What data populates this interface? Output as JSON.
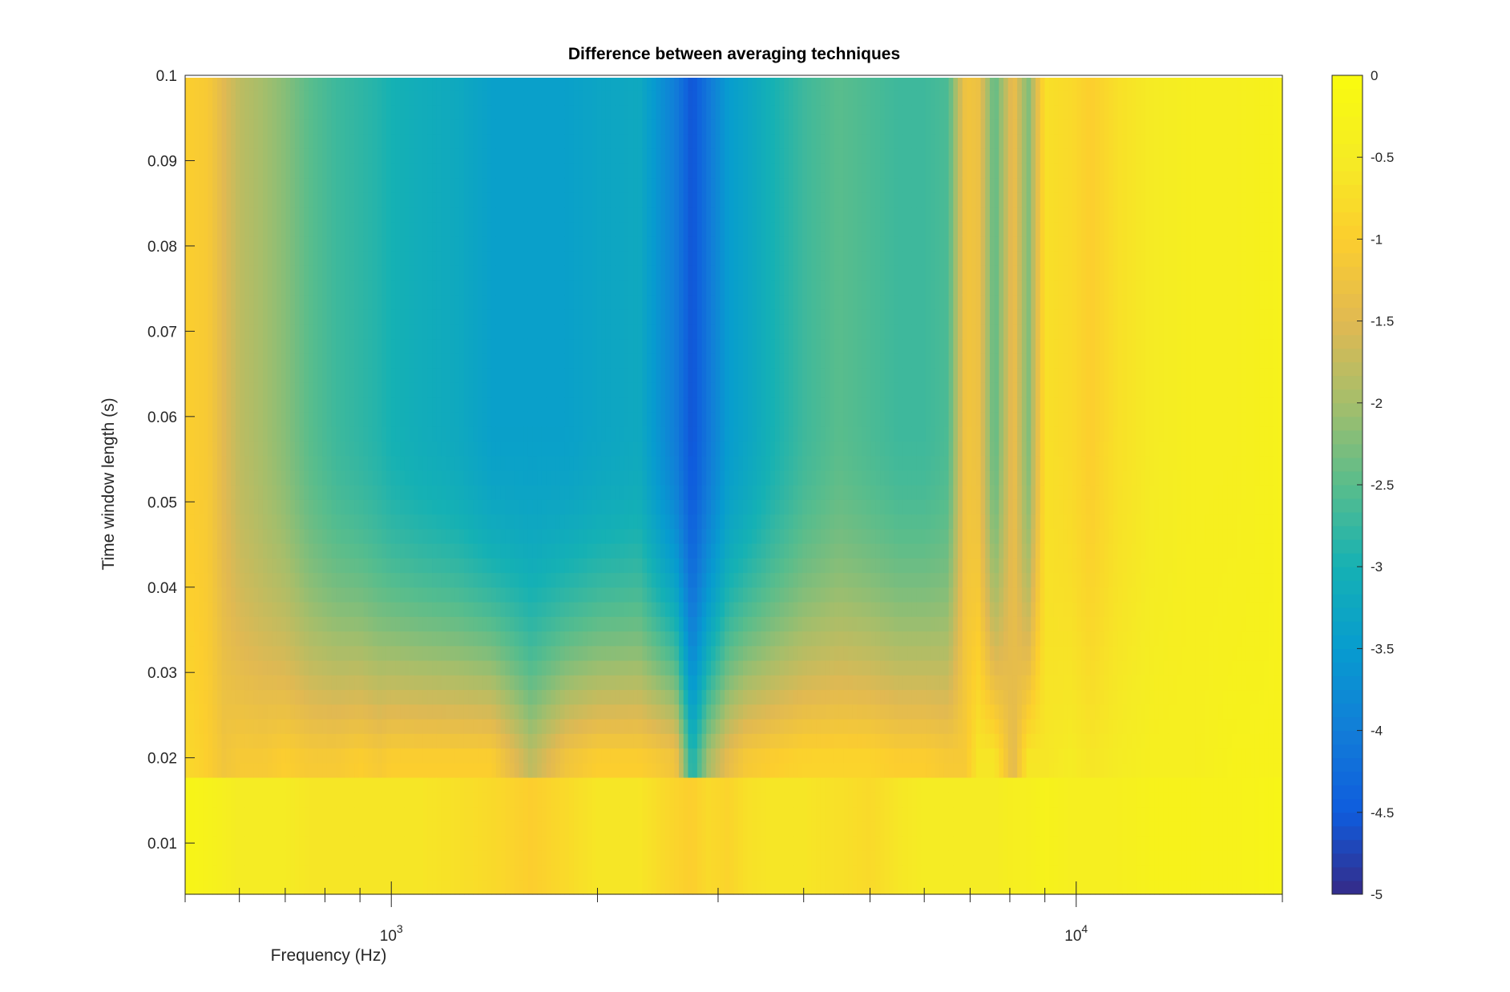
{
  "chart_data": {
    "type": "heatmap",
    "title": "Difference between averaging techniques",
    "xlabel": "Frequency (Hz)",
    "ylabel": "Time window length (s)",
    "x_scale": "log",
    "xlim": [
      500,
      20000
    ],
    "ylim": [
      0.004,
      0.1
    ],
    "x_ticks": [
      {
        "value": 1000,
        "base": "10",
        "exp": "3"
      },
      {
        "value": 10000,
        "base": "10",
        "exp": "4"
      }
    ],
    "y_ticks": [
      {
        "value": 0.01,
        "label": "0.01"
      },
      {
        "value": 0.02,
        "label": "0.02"
      },
      {
        "value": 0.03,
        "label": "0.03"
      },
      {
        "value": 0.04,
        "label": "0.04"
      },
      {
        "value": 0.05,
        "label": "0.05"
      },
      {
        "value": 0.06,
        "label": "0.06"
      },
      {
        "value": 0.07,
        "label": "0.07"
      },
      {
        "value": 0.08,
        "label": "0.08"
      },
      {
        "value": 0.09,
        "label": "0.09"
      },
      {
        "value": 0.1,
        "label": "0.1"
      }
    ],
    "colorbar": {
      "range": [
        -5,
        0
      ],
      "colormap": "parula",
      "ticks": [
        {
          "value": 0,
          "label": "0"
        },
        {
          "value": -0.5,
          "label": "-0.5"
        },
        {
          "value": -1,
          "label": "-1"
        },
        {
          "value": -1.5,
          "label": "-1.5"
        },
        {
          "value": -2,
          "label": "-2"
        },
        {
          "value": -2.5,
          "label": "-2.5"
        },
        {
          "value": -3,
          "label": "-3"
        },
        {
          "value": -3.5,
          "label": "-3.5"
        },
        {
          "value": -4,
          "label": "-4"
        },
        {
          "value": -4.5,
          "label": "-4.5"
        },
        {
          "value": -5,
          "label": "-5"
        }
      ]
    },
    "band_profile": {
      "frequency_hz": [
        500,
        540,
        570,
        600,
        650,
        700,
        760,
        830,
        900,
        960,
        1000,
        1100,
        1250,
        1400,
        1600,
        1800,
        2000,
        2300,
        2600,
        2750,
        2900,
        3100,
        3300,
        3600,
        4000,
        4500,
        5000,
        5500,
        6000,
        6500,
        6900,
        7200,
        7600,
        8100,
        8500,
        9000,
        9800,
        10500,
        11500,
        13000,
        15000,
        17000,
        20000
      ],
      "value_at_window_0.1s": [
        -1.0,
        -1.1,
        -1.5,
        -1.8,
        -2.0,
        -2.2,
        -2.5,
        -2.7,
        -2.8,
        -2.9,
        -3.0,
        -3.1,
        -3.2,
        -3.4,
        -3.4,
        -3.4,
        -3.3,
        -3.2,
        -4.0,
        -4.6,
        -4.1,
        -3.5,
        -3.3,
        -3.0,
        -2.7,
        -2.5,
        -2.6,
        -2.7,
        -2.7,
        -2.6,
        -1.2,
        -1.3,
        -2.5,
        -1.3,
        -2.3,
        -0.7,
        -0.8,
        -1.0,
        -0.7,
        -0.5,
        -0.4,
        -0.4,
        -0.3
      ],
      "value_at_window_0.02s": [
        -0.8,
        -1.0,
        -1.2,
        -1.1,
        -1.1,
        -1.0,
        -1.1,
        -1.1,
        -1.0,
        -1.1,
        -1.0,
        -1.0,
        -1.0,
        -1.0,
        -1.8,
        -1.2,
        -1.0,
        -1.0,
        -1.2,
        -3.0,
        -2.0,
        -1.4,
        -1.1,
        -1.0,
        -0.9,
        -0.9,
        -0.9,
        -1.0,
        -1.0,
        -1.1,
        -1.1,
        -0.6,
        -0.6,
        -1.5,
        -0.6,
        -0.6,
        -0.5,
        -0.6,
        -0.5,
        -0.4,
        -0.4,
        -0.3,
        -0.3
      ],
      "value_at_window_0.005s": [
        -0.2,
        -0.3,
        -0.4,
        -0.5,
        -0.5,
        -0.5,
        -0.6,
        -0.6,
        -0.6,
        -0.6,
        -0.6,
        -0.6,
        -0.7,
        -0.8,
        -1.0,
        -0.8,
        -0.6,
        -0.6,
        -0.9,
        -1.0,
        -0.8,
        -0.9,
        -0.7,
        -0.6,
        -0.6,
        -0.7,
        -0.8,
        -0.6,
        -0.5,
        -0.5,
        -0.5,
        -0.5,
        -0.5,
        -0.4,
        -0.4,
        -0.3,
        -0.4,
        -0.4,
        -0.4,
        -0.3,
        -0.3,
        -0.3,
        -0.2
      ],
      "transition_window_s": 0.018
    }
  }
}
